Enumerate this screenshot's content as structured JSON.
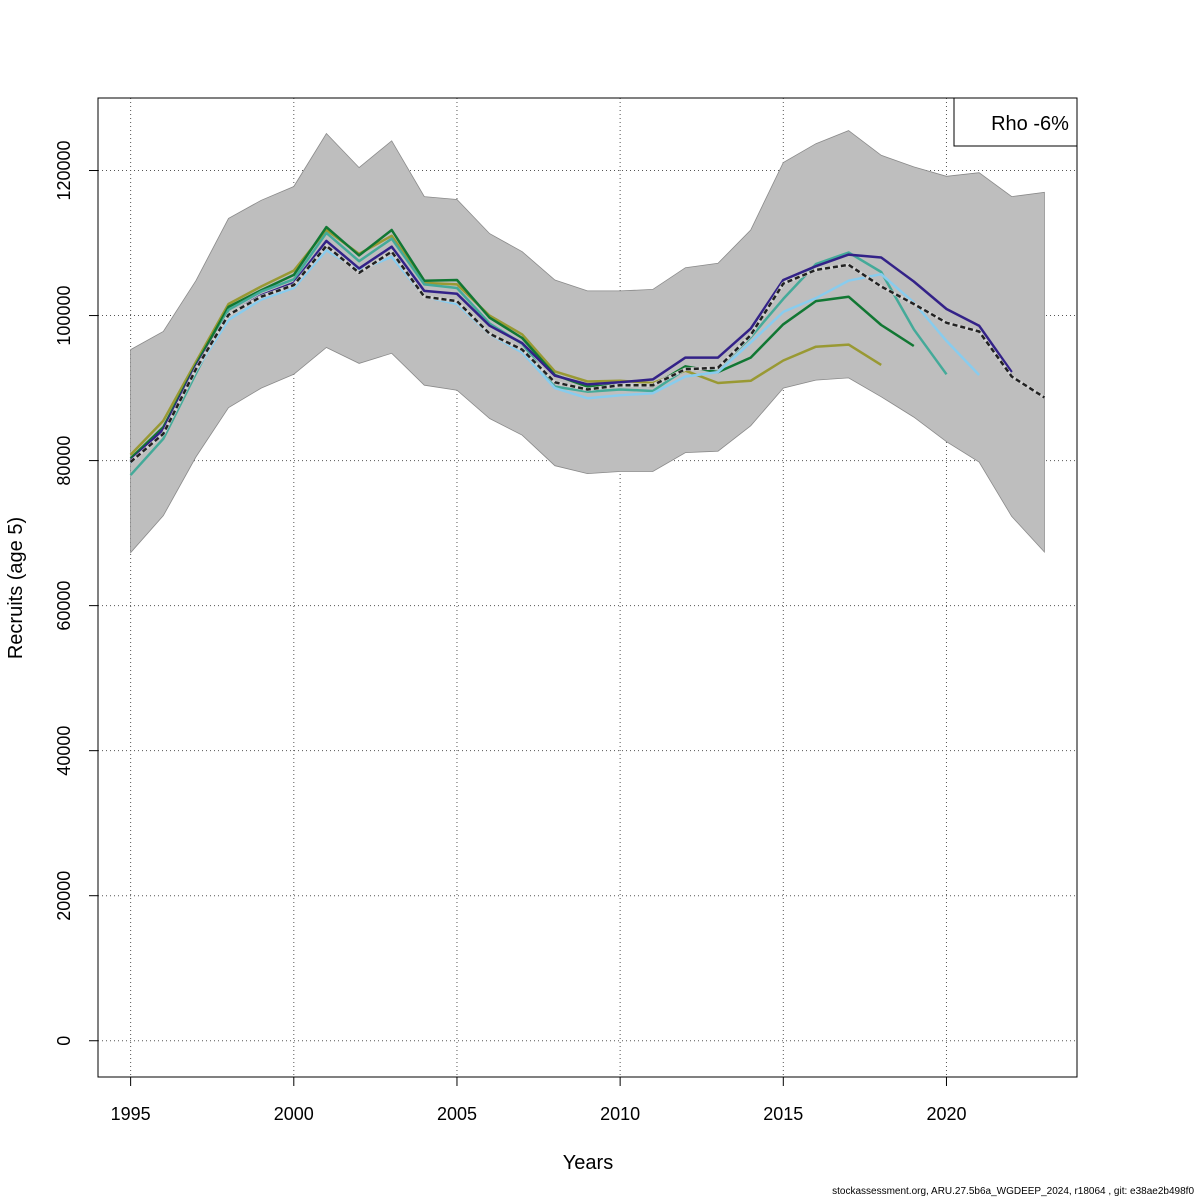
{
  "chart_data": {
    "type": "line",
    "title": "",
    "xlabel": "Years",
    "ylabel": "Recruits (age 5)",
    "xlim": [
      1994,
      2024
    ],
    "ylim": [
      -5000,
      130000
    ],
    "xticks": [
      1995,
      2000,
      2005,
      2010,
      2015,
      2020
    ],
    "xtick_labels": [
      "1995",
      "2000",
      "2005",
      "2010",
      "2015",
      "2020"
    ],
    "yticks": [
      0,
      20000,
      40000,
      60000,
      80000,
      100000,
      120000
    ],
    "ytick_labels": [
      "0",
      "20000",
      "40000",
      "60000",
      "80000",
      "100000",
      "120000"
    ],
    "grid": true,
    "legend": {
      "text": "Rho -6%",
      "position": "top-right"
    },
    "band": {
      "color": "#bebebe",
      "x": [
        1995,
        1996,
        1997,
        1998,
        1999,
        2000,
        2001,
        2002,
        2003,
        2004,
        2005,
        2006,
        2007,
        2008,
        2009,
        2010,
        2011,
        2012,
        2013,
        2014,
        2015,
        2016,
        2017,
        2018,
        2019,
        2020,
        2021,
        2022,
        2023
      ],
      "upper": [
        95300,
        97800,
        104800,
        113400,
        115900,
        117800,
        125100,
        120400,
        124100,
        116400,
        116000,
        111300,
        108800,
        104900,
        103400,
        103400,
        103600,
        106600,
        107200,
        111800,
        121100,
        123700,
        125500,
        122100,
        120500,
        119200,
        119700,
        116400,
        117000
      ],
      "lower": [
        67300,
        72400,
        80500,
        87300,
        90000,
        91900,
        95600,
        93400,
        94800,
        90400,
        89700,
        85800,
        83500,
        79300,
        78200,
        78500,
        78500,
        81100,
        81300,
        84800,
        90000,
        91100,
        91400,
        88800,
        86000,
        82600,
        79800,
        72300,
        67400
      ]
    },
    "series": [
      {
        "color": "#222222",
        "dashed": true,
        "x": [
          1995,
          1996,
          1997,
          1998,
          1999,
          2000,
          2001,
          2002,
          2003,
          2004,
          2005,
          2006,
          2007,
          2008,
          2009,
          2010,
          2011,
          2012,
          2013,
          2014,
          2015,
          2016,
          2017,
          2018,
          2019,
          2020,
          2021,
          2022,
          2023
        ],
        "values": [
          79800,
          83700,
          92600,
          100100,
          102600,
          104200,
          109600,
          105900,
          108800,
          102600,
          102000,
          97500,
          95300,
          90800,
          89800,
          90400,
          90400,
          92600,
          92800,
          97300,
          104400,
          106300,
          107000,
          104000,
          101600,
          99000,
          97800,
          91600,
          88700
        ]
      },
      {
        "color": "#332288",
        "x": [
          1995,
          1996,
          1997,
          1998,
          1999,
          2000,
          2001,
          2002,
          2003,
          2004,
          2005,
          2006,
          2007,
          2008,
          2009,
          2010,
          2011,
          2012,
          2013,
          2014,
          2015,
          2016,
          2017,
          2018,
          2019,
          2020,
          2021,
          2022
        ],
        "values": [
          80000,
          84300,
          93000,
          100100,
          102800,
          104500,
          110300,
          106500,
          109500,
          103400,
          103000,
          98600,
          96200,
          91700,
          90500,
          90800,
          91200,
          94200,
          94200,
          98200,
          104900,
          106800,
          108400,
          108000,
          104700,
          100900,
          98600,
          92200
        ]
      },
      {
        "color": "#88ccee",
        "x": [
          1995,
          1996,
          1997,
          1998,
          1999,
          2000,
          2001,
          2002,
          2003,
          2004,
          2005,
          2006,
          2007,
          2008,
          2009,
          2010,
          2011,
          2012,
          2013,
          2014,
          2015,
          2016,
          2017,
          2018,
          2019,
          2020,
          2021
        ],
        "values": [
          79700,
          84000,
          92400,
          99400,
          102200,
          103800,
          109000,
          106200,
          108100,
          102600,
          101600,
          97400,
          94900,
          90000,
          88600,
          89000,
          89300,
          91600,
          92200,
          96300,
          100500,
          102400,
          104800,
          105700,
          101800,
          96500,
          91800
        ]
      },
      {
        "color": "#44aa99",
        "x": [
          1995,
          1996,
          1997,
          1998,
          1999,
          2000,
          2001,
          2002,
          2003,
          2004,
          2005,
          2006,
          2007,
          2008,
          2009,
          2010,
          2011,
          2012,
          2013,
          2014,
          2015,
          2016,
          2017,
          2018,
          2019,
          2020
        ],
        "values": [
          78000,
          83000,
          92000,
          100800,
          103300,
          105000,
          111400,
          107500,
          110600,
          104300,
          103800,
          98900,
          96100,
          90200,
          89500,
          89800,
          89600,
          92600,
          92700,
          97000,
          102300,
          107100,
          108700,
          106000,
          98100,
          91900
        ]
      },
      {
        "color": "#117733",
        "x": [
          1995,
          1996,
          1997,
          1998,
          1999,
          2000,
          2001,
          2002,
          2003,
          2004,
          2005,
          2006,
          2007,
          2008,
          2009,
          2010,
          2011,
          2012,
          2013,
          2014,
          2015,
          2016,
          2017,
          2018,
          2019
        ],
        "values": [
          80300,
          84600,
          93200,
          101200,
          103500,
          105600,
          112200,
          108300,
          111800,
          104800,
          104900,
          99700,
          96900,
          91800,
          90200,
          90400,
          90300,
          93000,
          92200,
          94200,
          98800,
          102000,
          102600,
          98700,
          95800
        ]
      },
      {
        "color": "#999933",
        "x": [
          1995,
          1996,
          1997,
          1998,
          1999,
          2000,
          2001,
          2002,
          2003,
          2004,
          2005,
          2006,
          2007,
          2008,
          2009,
          2010,
          2011,
          2012,
          2013,
          2014,
          2015,
          2016,
          2017,
          2018
        ],
        "values": [
          80800,
          85500,
          93600,
          101600,
          104000,
          106200,
          111800,
          108500,
          111000,
          104500,
          104300,
          100000,
          97400,
          92300,
          90900,
          91000,
          90700,
          92400,
          90700,
          91000,
          93800,
          95700,
          96000,
          93200
        ]
      }
    ]
  },
  "footer": "stockassessment.org, ARU.27.5b6a_WGDEEP_2024, r18064 , git: e38ae2b498f0"
}
